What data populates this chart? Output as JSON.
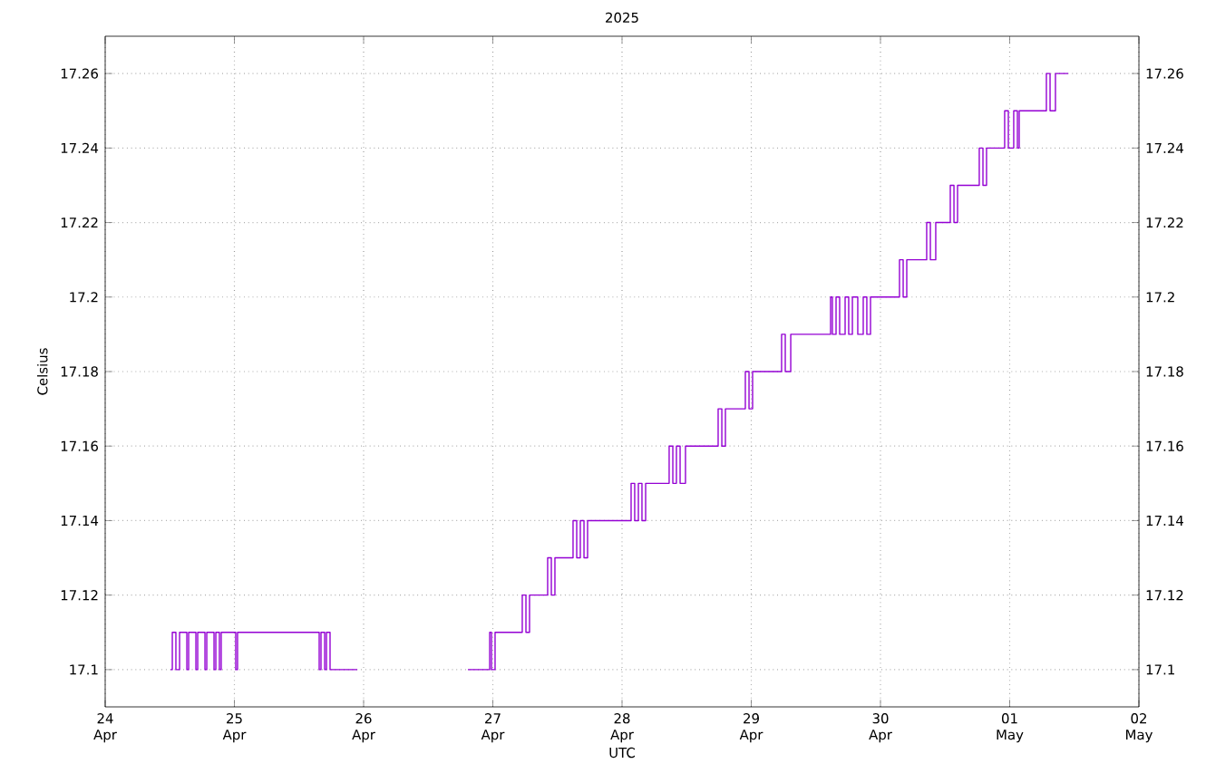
{
  "chart_data": {
    "type": "step",
    "title": "2025",
    "xlabel": "UTC",
    "ylabel": "Celsius",
    "xlim": [
      "2025-04-24",
      "2025-05-02"
    ],
    "xticks": [
      {
        "value": "2025-04-24",
        "label": "24 Apr"
      },
      {
        "value": "2025-04-25",
        "label": "25 Apr"
      },
      {
        "value": "2025-04-26",
        "label": "26 Apr"
      },
      {
        "value": "2025-04-27",
        "label": "27 Apr"
      },
      {
        "value": "2025-04-28",
        "label": "28 Apr"
      },
      {
        "value": "2025-04-29",
        "label": "29 Apr"
      },
      {
        "value": "2025-04-30",
        "label": "30 Apr"
      },
      {
        "value": "2025-05-01",
        "label": "01 May"
      },
      {
        "value": "2025-05-02",
        "label": "02 May"
      }
    ],
    "ylim": [
      17.09,
      17.27
    ],
    "yticks": [
      17.1,
      17.12,
      17.14,
      17.16,
      17.18,
      17.2,
      17.22,
      17.24,
      17.26
    ],
    "y2lim": [
      17.09,
      17.27
    ],
    "y2ticks": [
      17.1,
      17.12,
      17.14,
      17.16,
      17.18,
      17.2,
      17.22,
      17.24,
      17.26
    ],
    "grid": true,
    "line_style": "solid",
    "series": [
      {
        "color": "#9400d3",
        "x": [
          "2025-04-24T12:08",
          "2025-04-24T12:28",
          "2025-04-24T13:08",
          "2025-04-24T13:49",
          "2025-04-24T15:10",
          "2025-04-24T15:30",
          "2025-04-24T16:51",
          "2025-04-24T17:11",
          "2025-04-24T18:32",
          "2025-04-24T18:52",
          "2025-04-24T20:13",
          "2025-04-24T20:33",
          "2025-04-24T21:13",
          "2025-04-24T21:33",
          "2025-04-25T00:15",
          "2025-04-25T00:35",
          "2025-04-25T15:45",
          "2025-04-25T16:05",
          "2025-04-25T16:46",
          "2025-04-25T17:06",
          "2025-04-25T17:46",
          "2025-04-25T22:49",
          "2025-04-25T23:10",
          "2025-04-26T19:22",
          "2025-04-26T23:25",
          "2025-04-26T23:45",
          "2025-04-27T00:25",
          "2025-04-27T05:28",
          "2025-04-27T06:09",
          "2025-04-27T06:49",
          "2025-04-27T10:11",
          "2025-04-27T10:52",
          "2025-04-27T11:32",
          "2025-04-27T14:54",
          "2025-04-27T15:35",
          "2025-04-27T16:15",
          "2025-04-27T16:56",
          "2025-04-27T17:36",
          "2025-04-28T01:41",
          "2025-04-28T02:21",
          "2025-04-28T03:02",
          "2025-04-28T03:42",
          "2025-04-28T04:23",
          "2025-04-28T08:45",
          "2025-04-28T09:26",
          "2025-04-28T10:06",
          "2025-04-28T10:47",
          "2025-04-28T11:47",
          "2025-04-28T17:51",
          "2025-04-28T18:32",
          "2025-04-28T19:12",
          "2025-04-28T22:54",
          "2025-04-28T23:35",
          "2025-04-29T00:15",
          "2025-04-29T05:38",
          "2025-04-29T06:19",
          "2025-04-29T07:20",
          "2025-04-29T14:44",
          "2025-04-29T15:04",
          "2025-04-29T15:45",
          "2025-04-29T16:25",
          "2025-04-29T17:26",
          "2025-04-29T18:06",
          "2025-04-29T18:47",
          "2025-04-29T19:47",
          "2025-04-29T20:48",
          "2025-04-29T21:28",
          "2025-04-29T22:09",
          "2025-04-30T03:32",
          "2025-04-30T04:13",
          "2025-04-30T04:53",
          "2025-04-30T08:35",
          "2025-04-30T09:16",
          "2025-04-30T10:16",
          "2025-04-30T12:58",
          "2025-04-30T13:39",
          "2025-04-30T14:19",
          "2025-04-30T18:21",
          "2025-04-30T19:02",
          "2025-04-30T19:42",
          "2025-04-30T23:04",
          "2025-04-30T23:45",
          "2025-05-01T00:45",
          "2025-05-01T01:26",
          "2025-05-01T01:46",
          "2025-05-01T06:49",
          "2025-05-01T07:30",
          "2025-05-01T08:30",
          "2025-05-01T10:52"
        ],
        "values": [
          17.1,
          17.11,
          17.1,
          17.11,
          17.1,
          17.11,
          17.1,
          17.11,
          17.1,
          17.11,
          17.1,
          17.11,
          17.1,
          17.11,
          17.1,
          17.11,
          17.1,
          17.11,
          17.1,
          17.11,
          17.1,
          17.1,
          null,
          17.1,
          17.11,
          17.1,
          17.11,
          17.12,
          17.11,
          17.12,
          17.13,
          17.12,
          17.13,
          17.14,
          17.13,
          17.14,
          17.13,
          17.14,
          17.15,
          17.14,
          17.15,
          17.14,
          17.15,
          17.16,
          17.15,
          17.16,
          17.15,
          17.16,
          17.17,
          17.16,
          17.17,
          17.18,
          17.17,
          17.18,
          17.19,
          17.18,
          17.19,
          17.2,
          17.19,
          17.2,
          17.19,
          17.2,
          17.19,
          17.2,
          17.19,
          17.2,
          17.19,
          17.2,
          17.21,
          17.2,
          17.21,
          17.22,
          17.21,
          17.22,
          17.23,
          17.22,
          17.23,
          17.24,
          17.23,
          17.24,
          17.25,
          17.24,
          17.25,
          17.24,
          17.25,
          17.26,
          17.25,
          17.26,
          17.26
        ]
      }
    ]
  }
}
